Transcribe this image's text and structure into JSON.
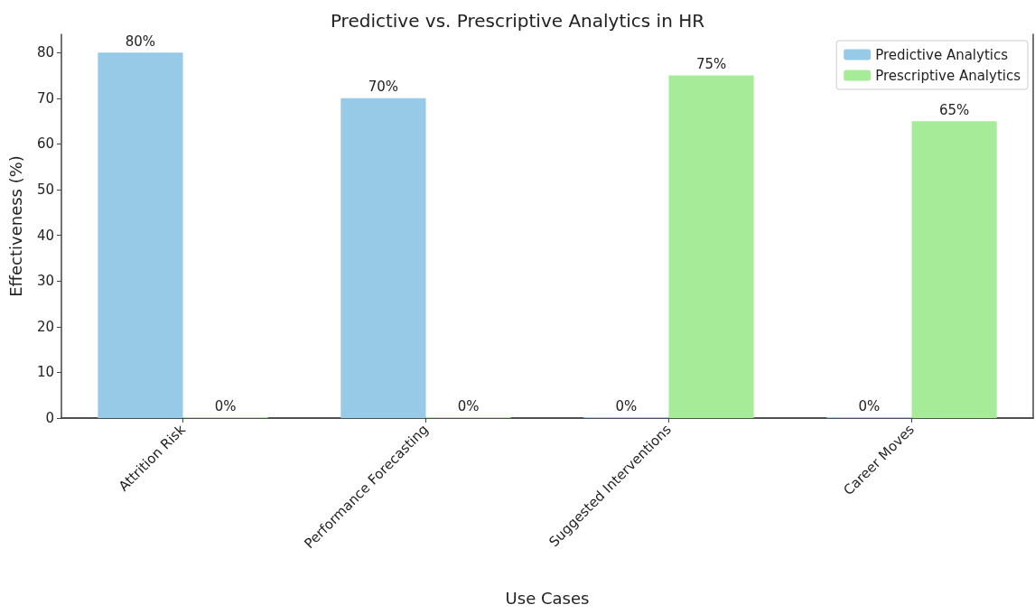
{
  "chart_data": {
    "type": "bar",
    "title": "Predictive vs. Prescriptive Analytics in HR",
    "xlabel": "Use Cases",
    "ylabel": "Effectiveness (%)",
    "categories": [
      "Attrition Risk",
      "Performance Forecasting",
      "Suggested Interventions",
      "Career Moves"
    ],
    "series": [
      {
        "name": "Predictive Analytics",
        "color": "#97cae6",
        "values": [
          80,
          70,
          0,
          0
        ],
        "value_labels": [
          "80%",
          "70%",
          "0%",
          "0%"
        ]
      },
      {
        "name": "Prescriptive Analytics",
        "color": "#a6eb97",
        "values": [
          0,
          0,
          75,
          65
        ],
        "value_labels": [
          "0%",
          "0%",
          "75%",
          "65%"
        ]
      }
    ],
    "ylim": [
      0,
      84
    ],
    "yticks": [
      0,
      10,
      20,
      30,
      40,
      50,
      60,
      70,
      80
    ],
    "grid": false,
    "legend": "top right"
  }
}
